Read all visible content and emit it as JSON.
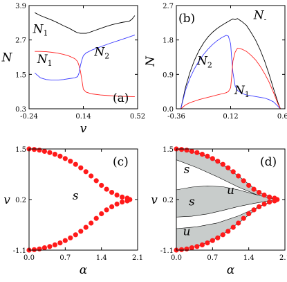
{
  "chart_data": [
    {
      "panel": "(a)",
      "type": "line",
      "xlabel": "v",
      "ylabel": "N",
      "xlim": [
        -0.24,
        0.52
      ],
      "ylim": [
        0.3,
        3.9
      ],
      "xticks": [
        "-0.24",
        "0.14",
        "0.52"
      ],
      "yticks": [
        "0.3",
        "1.5",
        "2.7",
        "3.9"
      ],
      "grid": false,
      "annotations": [
        {
          "text": "N",
          "sub": "1",
          "x": -0.16,
          "y": 2.95
        },
        {
          "text": "N",
          "sub": "1",
          "x": -0.13,
          "y": 1.9
        },
        {
          "text": "N",
          "sub": "2",
          "x": 0.27,
          "y": 2.15
        }
      ],
      "series": [
        {
          "color": "#000000",
          "x": [
            -0.2,
            -0.16,
            -0.12,
            -0.08,
            -0.04,
            0.0,
            0.04,
            0.08,
            0.1,
            0.12,
            0.14,
            0.16,
            0.18,
            0.22,
            0.26,
            0.3,
            0.34,
            0.38,
            0.42,
            0.46,
            0.48,
            0.5
          ],
          "y": [
            3.65,
            3.55,
            3.47,
            3.39,
            3.3,
            3.2,
            3.11,
            3.0,
            2.95,
            2.93,
            2.93,
            2.93,
            2.96,
            3.03,
            3.1,
            3.17,
            3.23,
            3.28,
            3.32,
            3.35,
            3.42,
            3.55
          ]
        },
        {
          "color": "#ff2020",
          "x": [
            -0.2,
            -0.16,
            -0.12,
            -0.08,
            -0.04,
            0.0,
            0.04,
            0.08,
            0.1,
            0.11,
            0.12,
            0.13,
            0.14,
            0.16,
            0.2,
            0.26,
            0.32,
            0.38,
            0.44,
            0.5
          ],
          "y": [
            2.3,
            2.3,
            2.29,
            2.27,
            2.24,
            2.2,
            2.14,
            2.05,
            1.95,
            1.8,
            1.6,
            1.3,
            0.98,
            0.88,
            0.82,
            0.78,
            0.76,
            0.74,
            0.73,
            0.72
          ]
        },
        {
          "color": "#3a3aff",
          "x": [
            -0.2,
            -0.16,
            -0.12,
            -0.08,
            -0.04,
            0.0,
            0.04,
            0.08,
            0.1,
            0.11,
            0.12,
            0.13,
            0.14,
            0.16,
            0.2,
            0.26,
            0.32,
            0.38,
            0.44,
            0.5
          ],
          "y": [
            1.55,
            1.38,
            1.32,
            1.3,
            1.3,
            1.32,
            1.35,
            1.38,
            1.42,
            1.55,
            1.82,
            2.0,
            2.15,
            2.25,
            2.35,
            2.46,
            2.57,
            2.67,
            2.77,
            2.87
          ]
        }
      ]
    },
    {
      "panel": "(b)",
      "type": "line",
      "xlabel": "",
      "ylabel": "N",
      "xlim": [
        -0.36,
        0.6
      ],
      "ylim": [
        0.0,
        2.7
      ],
      "xticks": [
        "-0.36",
        "0.12",
        "0.60"
      ],
      "yticks": [
        "0.0",
        "0.9",
        "1.8",
        "2.7"
      ],
      "grid": false,
      "annotations": [
        {
          "text": "N",
          "sub": "-",
          "x": 0.38,
          "y": 2.35
        },
        {
          "text": "N",
          "sub": "2",
          "x": -0.11,
          "y": 1.15
        },
        {
          "text": "N",
          "sub": "1",
          "x": 0.22,
          "y": 0.38
        }
      ],
      "series": [
        {
          "color": "#000000",
          "x": [
            -0.32,
            -0.28,
            -0.24,
            -0.2,
            -0.16,
            -0.12,
            -0.08,
            -0.04,
            0.0,
            0.04,
            0.08,
            0.12,
            0.14,
            0.16,
            0.18,
            0.2,
            0.22,
            0.26,
            0.3,
            0.34,
            0.38,
            0.42,
            0.46,
            0.5,
            0.54,
            0.56
          ],
          "y": [
            0.0,
            0.55,
            0.95,
            1.27,
            1.52,
            1.72,
            1.88,
            2.0,
            2.1,
            2.18,
            2.25,
            2.32,
            2.35,
            2.33,
            2.36,
            2.32,
            2.28,
            2.18,
            2.0,
            1.8,
            1.55,
            1.25,
            0.9,
            0.52,
            0.15,
            0.0
          ]
        },
        {
          "color": "#3a3aff",
          "x": [
            -0.32,
            -0.28,
            -0.24,
            -0.2,
            -0.16,
            -0.12,
            -0.08,
            -0.04,
            0.0,
            0.04,
            0.08,
            0.1,
            0.12,
            0.13,
            0.14,
            0.16,
            0.18,
            0.22,
            0.26,
            0.3,
            0.34,
            0.38,
            0.42,
            0.46,
            0.5,
            0.54,
            0.56
          ],
          "y": [
            0.0,
            0.48,
            0.8,
            1.05,
            1.25,
            1.42,
            1.56,
            1.68,
            1.78,
            1.86,
            1.92,
            1.9,
            1.7,
            1.3,
            0.95,
            0.6,
            0.48,
            0.4,
            0.36,
            0.34,
            0.32,
            0.3,
            0.28,
            0.24,
            0.18,
            0.06,
            0.0
          ]
        },
        {
          "color": "#ff2020",
          "x": [
            -0.32,
            -0.28,
            -0.24,
            -0.2,
            -0.16,
            -0.12,
            -0.08,
            -0.04,
            0.0,
            0.04,
            0.08,
            0.1,
            0.12,
            0.13,
            0.14,
            0.16,
            0.18,
            0.22,
            0.26,
            0.3,
            0.34,
            0.38,
            0.42,
            0.46,
            0.5,
            0.54,
            0.56
          ],
          "y": [
            0.0,
            0.1,
            0.16,
            0.2,
            0.24,
            0.27,
            0.3,
            0.33,
            0.36,
            0.39,
            0.42,
            0.45,
            0.55,
            0.85,
            1.25,
            1.48,
            1.58,
            1.56,
            1.5,
            1.4,
            1.28,
            1.12,
            0.92,
            0.7,
            0.42,
            0.12,
            0.0
          ]
        }
      ]
    },
    {
      "panel": "(c)",
      "type": "scatter",
      "xlabel": "α",
      "ylabel": "v",
      "xlim": [
        0.0,
        2.1
      ],
      "ylim": [
        -1.1,
        1.5
      ],
      "xticks": [
        "0.0",
        "0.7",
        "1.4",
        "2.1"
      ],
      "yticks": [
        "-1.1",
        "0.2",
        "1.5"
      ],
      "grid": false,
      "regions": [],
      "annotations": [
        {
          "text": "s",
          "x": 0.9,
          "y": 0.2
        }
      ],
      "marker_color": "#ff1a1a",
      "points": [
        [
          0.0,
          1.5
        ],
        [
          0.1,
          1.488
        ],
        [
          0.2,
          1.47
        ],
        [
          0.3,
          1.44
        ],
        [
          0.4,
          1.408
        ],
        [
          0.5,
          1.365
        ],
        [
          0.6,
          1.315
        ],
        [
          0.7,
          1.255
        ],
        [
          0.8,
          1.185
        ],
        [
          0.9,
          1.105
        ],
        [
          1.0,
          1.015
        ],
        [
          1.1,
          0.915
        ],
        [
          1.2,
          0.805
        ],
        [
          1.3,
          0.685
        ],
        [
          1.4,
          0.565
        ],
        [
          1.5,
          0.465
        ],
        [
          1.6,
          0.385
        ],
        [
          1.7,
          0.315
        ],
        [
          1.8,
          0.265
        ],
        [
          1.9,
          0.235
        ],
        [
          1.95,
          0.2
        ],
        [
          1.9,
          0.165
        ],
        [
          1.8,
          0.135
        ],
        [
          1.7,
          0.085
        ],
        [
          1.6,
          0.015
        ],
        [
          1.5,
          -0.065
        ],
        [
          1.4,
          -0.165
        ],
        [
          1.3,
          -0.285
        ],
        [
          1.2,
          -0.405
        ],
        [
          1.1,
          -0.515
        ],
        [
          1.0,
          -0.615
        ],
        [
          0.9,
          -0.705
        ],
        [
          0.8,
          -0.785
        ],
        [
          0.7,
          -0.855
        ],
        [
          0.6,
          -0.915
        ],
        [
          0.5,
          -0.965
        ],
        [
          0.4,
          -1.008
        ],
        [
          0.3,
          -1.04
        ],
        [
          0.2,
          -1.07
        ],
        [
          0.1,
          -1.088
        ],
        [
          0.0,
          -1.1
        ]
      ]
    },
    {
      "panel": "(d)",
      "type": "scatter",
      "xlabel": "α",
      "ylabel": "v",
      "xlim": [
        0.0,
        2.1
      ],
      "ylim": [
        -1.1,
        1.5
      ],
      "xticks": [
        "0.0",
        "0.7",
        "1.4",
        "2.1"
      ],
      "yticks": [
        "-1.1",
        "0.2",
        "1.5"
      ],
      "grid": false,
      "region_color": "#c8cccb",
      "regions": [
        {
          "label": "u",
          "boundary": [
            [
              0.0,
              1.5
            ],
            [
              0.4,
              1.408
            ],
            [
              0.8,
              1.185
            ],
            [
              1.2,
              0.805
            ],
            [
              1.6,
              0.385
            ],
            [
              1.95,
              0.2
            ],
            [
              1.6,
              0.3
            ],
            [
              1.2,
              0.52
            ],
            [
              0.8,
              0.78
            ],
            [
              0.4,
              1.02
            ],
            [
              0.0,
              1.22
            ]
          ]
        },
        {
          "label": "u",
          "boundary": [
            [
              0.0,
              0.45
            ],
            [
              0.3,
              0.52
            ],
            [
              0.6,
              0.55
            ],
            [
              0.9,
              0.53
            ],
            [
              1.2,
              0.45
            ],
            [
              1.5,
              0.34
            ],
            [
              1.8,
              0.24
            ],
            [
              1.95,
              0.2
            ],
            [
              1.8,
              0.17
            ],
            [
              1.5,
              0.1
            ],
            [
              1.2,
              0.02
            ],
            [
              0.9,
              -0.08
            ],
            [
              0.6,
              -0.17
            ],
            [
              0.3,
              -0.23
            ],
            [
              0.0,
              -0.25
            ]
          ]
        },
        {
          "label": "u",
          "boundary": [
            [
              0.0,
              -0.55
            ],
            [
              0.4,
              -0.5
            ],
            [
              0.8,
              -0.4
            ],
            [
              1.2,
              -0.22
            ],
            [
              1.6,
              0.02
            ],
            [
              1.95,
              0.2
            ],
            [
              1.6,
              0.015
            ],
            [
              1.2,
              -0.405
            ],
            [
              0.8,
              -0.785
            ],
            [
              0.4,
              -1.008
            ],
            [
              0.0,
              -1.1
            ]
          ]
        }
      ],
      "annotations": [
        {
          "text": "s",
          "x": 0.2,
          "y": 0.88
        },
        {
          "text": "s",
          "x": 0.3,
          "y": 0.05
        },
        {
          "text": "u",
          "x": 1.05,
          "y": 0.34
        },
        {
          "text": "u",
          "x": 0.2,
          "y": -0.72
        }
      ],
      "marker_color": "#ff1a1a",
      "points": [
        [
          0.0,
          1.5
        ],
        [
          0.1,
          1.488
        ],
        [
          0.2,
          1.47
        ],
        [
          0.3,
          1.44
        ],
        [
          0.4,
          1.408
        ],
        [
          0.5,
          1.365
        ],
        [
          0.6,
          1.315
        ],
        [
          0.7,
          1.255
        ],
        [
          0.8,
          1.185
        ],
        [
          0.9,
          1.105
        ],
        [
          1.0,
          1.015
        ],
        [
          1.1,
          0.915
        ],
        [
          1.2,
          0.805
        ],
        [
          1.3,
          0.685
        ],
        [
          1.4,
          0.565
        ],
        [
          1.5,
          0.465
        ],
        [
          1.6,
          0.385
        ],
        [
          1.7,
          0.315
        ],
        [
          1.8,
          0.265
        ],
        [
          1.9,
          0.235
        ],
        [
          1.95,
          0.2
        ],
        [
          1.9,
          0.165
        ],
        [
          1.8,
          0.135
        ],
        [
          1.7,
          0.085
        ],
        [
          1.6,
          0.015
        ],
        [
          1.5,
          -0.065
        ],
        [
          1.4,
          -0.165
        ],
        [
          1.3,
          -0.285
        ],
        [
          1.2,
          -0.405
        ],
        [
          1.1,
          -0.515
        ],
        [
          1.0,
          -0.615
        ],
        [
          0.9,
          -0.705
        ],
        [
          0.8,
          -0.785
        ],
        [
          0.7,
          -0.855
        ],
        [
          0.6,
          -0.915
        ],
        [
          0.5,
          -0.965
        ],
        [
          0.4,
          -1.008
        ],
        [
          0.3,
          -1.04
        ],
        [
          0.2,
          -1.07
        ],
        [
          0.1,
          -1.088
        ],
        [
          0.0,
          -1.1
        ]
      ]
    }
  ]
}
